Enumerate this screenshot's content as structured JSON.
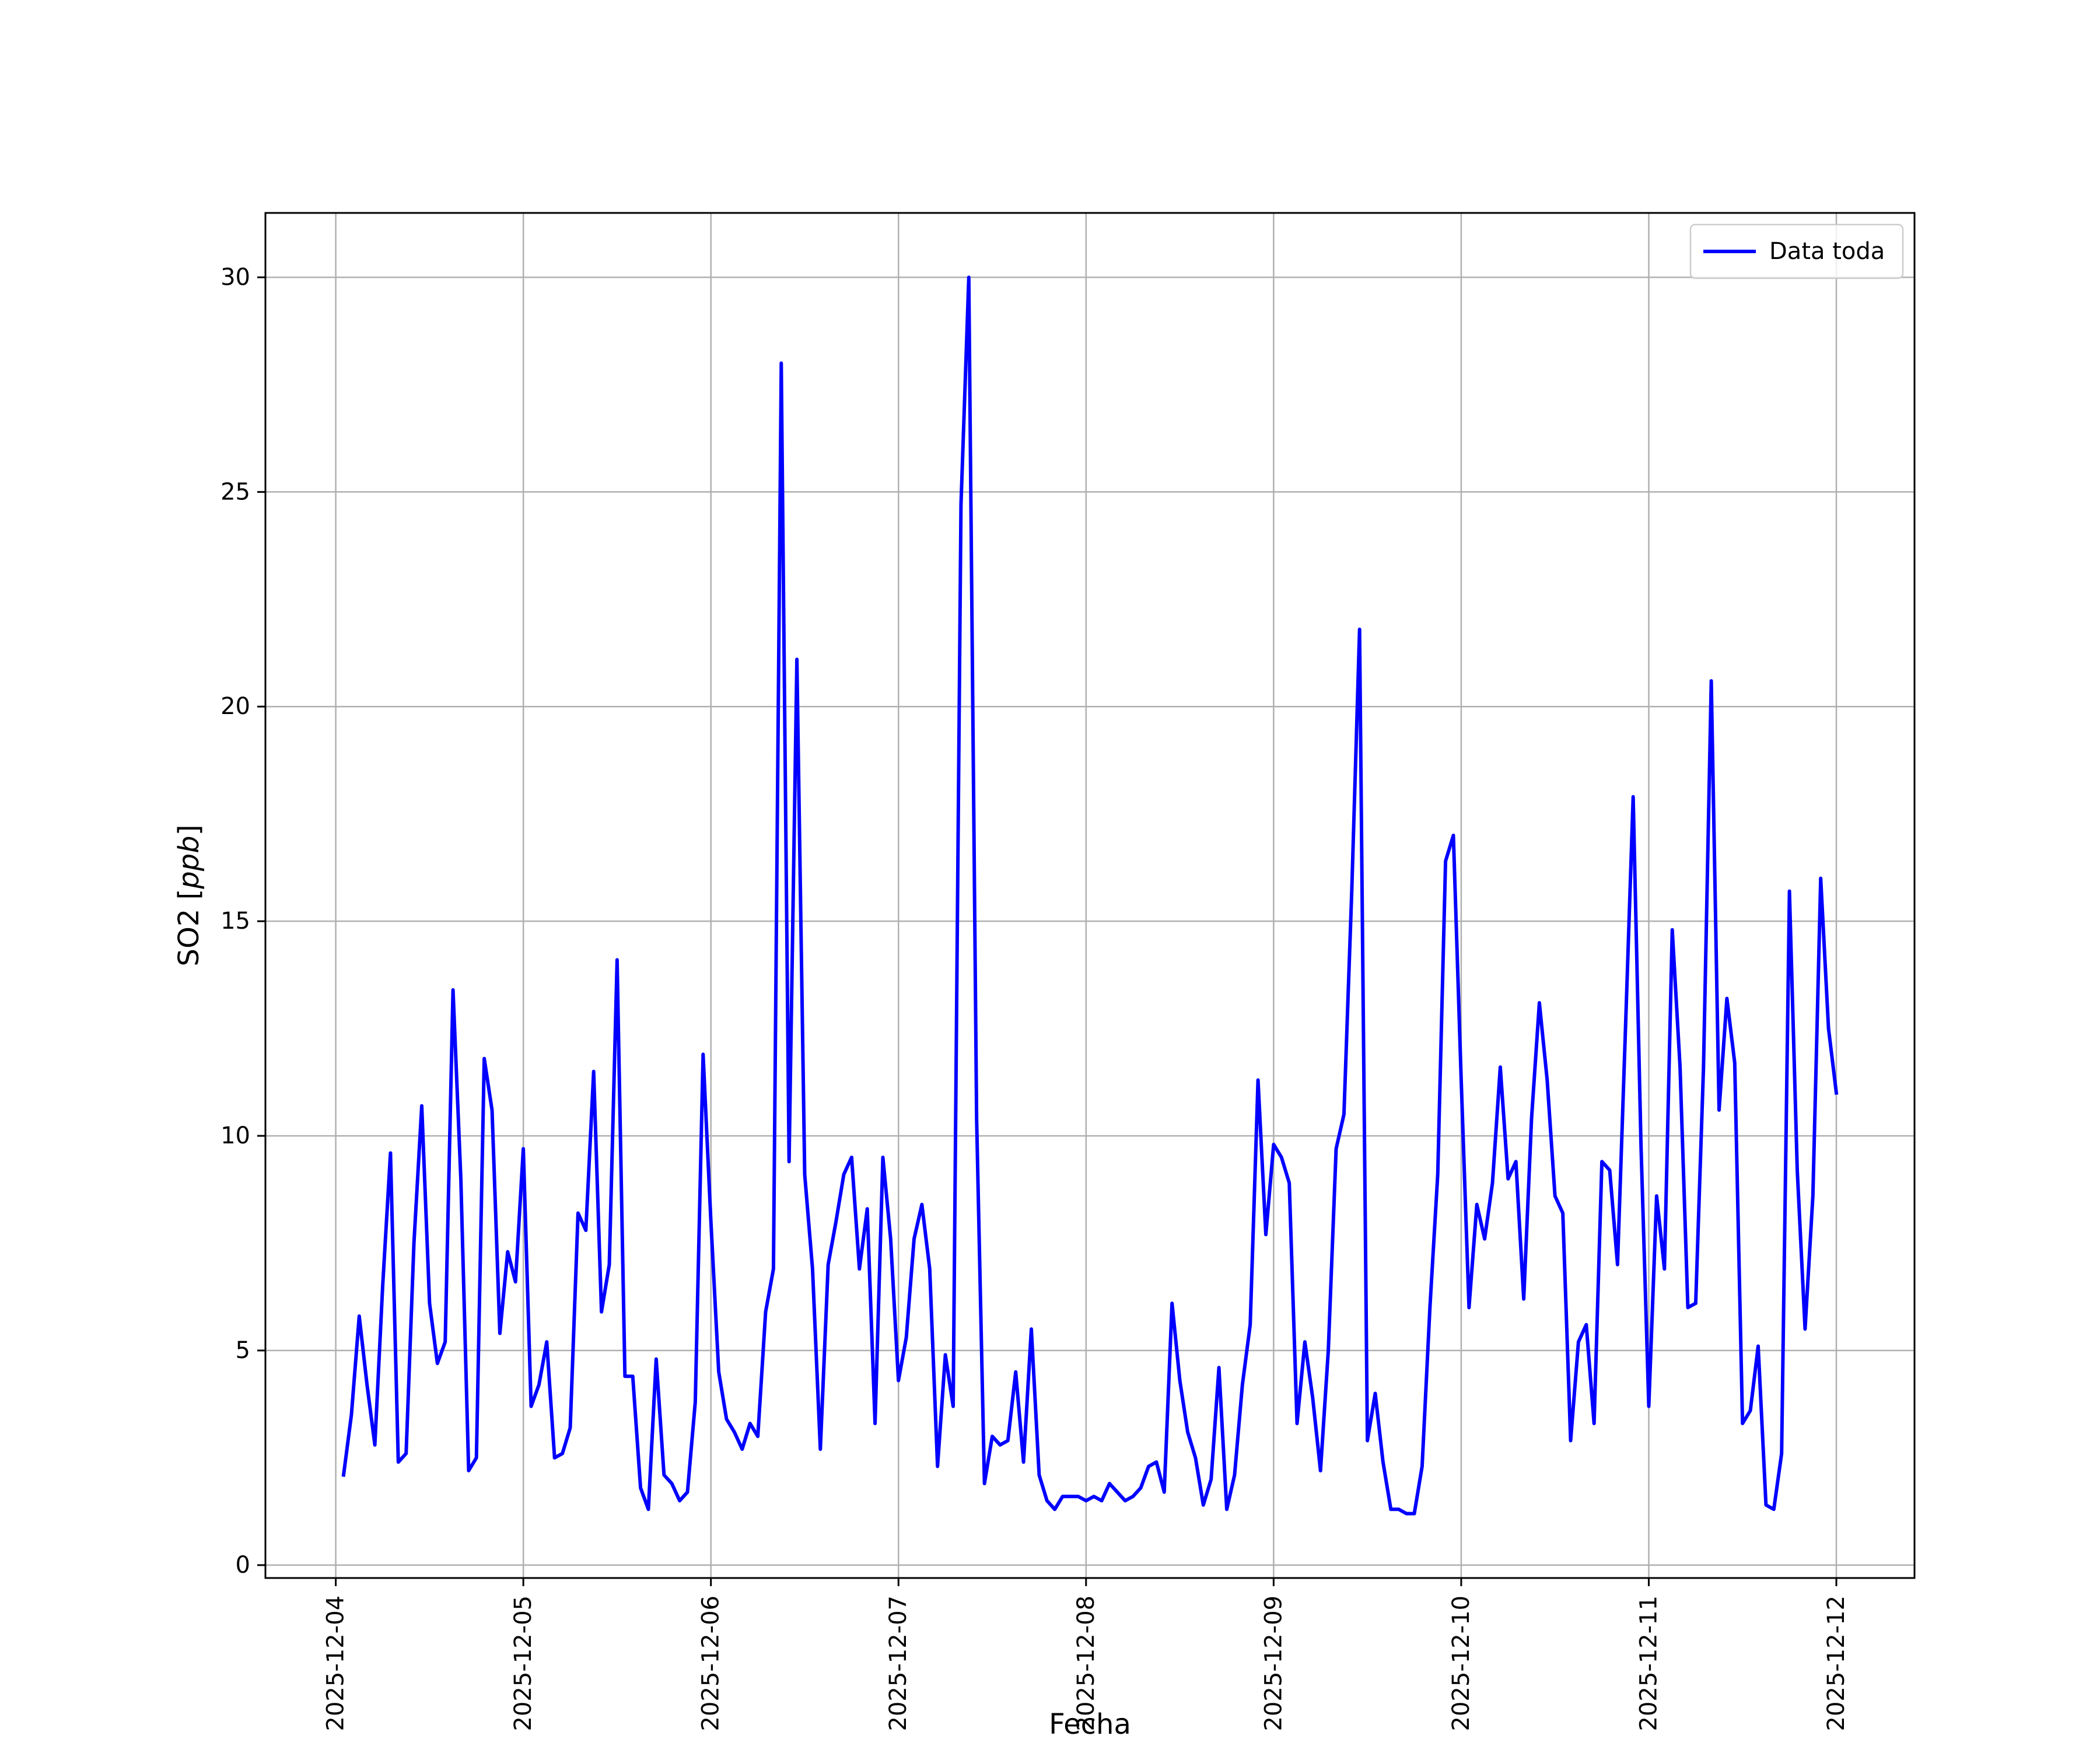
{
  "chart_data": {
    "type": "line",
    "title": "",
    "xlabel": "Fecha",
    "ylabel": "SO2 [ppb]",
    "ylabel_parts": {
      "plain": "SO2 [",
      "italic": "ppb",
      "close": "]"
    },
    "x_ticks": [
      "2025-12-04",
      "2025-12-05",
      "2025-12-06",
      "2025-12-07",
      "2025-12-08",
      "2025-12-09",
      "2025-12-10",
      "2025-12-11",
      "2025-12-12"
    ],
    "y_ticks": [
      0,
      5,
      10,
      15,
      20,
      25,
      30
    ],
    "xlim": [
      "2025-12-03T15:00",
      "2025-12-12T10:00"
    ],
    "ylim": [
      -0.3,
      31.5
    ],
    "grid": true,
    "legend_position": "upper right",
    "colors": {
      "series": "#0000ff",
      "grid": "#b0b0b0",
      "axes": "#000000"
    },
    "series": [
      {
        "name": "Data toda",
        "x": [
          "2025-12-04T01:00",
          "2025-12-04T02:00",
          "2025-12-04T03:00",
          "2025-12-04T04:00",
          "2025-12-04T05:00",
          "2025-12-04T06:00",
          "2025-12-04T07:00",
          "2025-12-04T08:00",
          "2025-12-04T09:00",
          "2025-12-04T10:00",
          "2025-12-04T11:00",
          "2025-12-04T12:00",
          "2025-12-04T13:00",
          "2025-12-04T14:00",
          "2025-12-04T15:00",
          "2025-12-04T16:00",
          "2025-12-04T17:00",
          "2025-12-04T18:00",
          "2025-12-04T19:00",
          "2025-12-04T20:00",
          "2025-12-04T21:00",
          "2025-12-04T22:00",
          "2025-12-04T23:00",
          "2025-12-05T00:00",
          "2025-12-05T01:00",
          "2025-12-05T02:00",
          "2025-12-05T03:00",
          "2025-12-05T04:00",
          "2025-12-05T05:00",
          "2025-12-05T06:00",
          "2025-12-05T07:00",
          "2025-12-05T08:00",
          "2025-12-05T09:00",
          "2025-12-05T10:00",
          "2025-12-05T11:00",
          "2025-12-05T12:00",
          "2025-12-05T13:00",
          "2025-12-05T14:00",
          "2025-12-05T15:00",
          "2025-12-05T16:00",
          "2025-12-05T17:00",
          "2025-12-05T18:00",
          "2025-12-05T19:00",
          "2025-12-05T20:00",
          "2025-12-05T21:00",
          "2025-12-05T22:00",
          "2025-12-05T23:00",
          "2025-12-06T00:00",
          "2025-12-06T01:00",
          "2025-12-06T02:00",
          "2025-12-06T03:00",
          "2025-12-06T04:00",
          "2025-12-06T05:00",
          "2025-12-06T06:00",
          "2025-12-06T07:00",
          "2025-12-06T08:00",
          "2025-12-06T09:00",
          "2025-12-06T10:00",
          "2025-12-06T11:00",
          "2025-12-06T12:00",
          "2025-12-06T13:00",
          "2025-12-06T14:00",
          "2025-12-06T15:00",
          "2025-12-06T16:00",
          "2025-12-06T17:00",
          "2025-12-06T18:00",
          "2025-12-06T19:00",
          "2025-12-06T20:00",
          "2025-12-06T21:00",
          "2025-12-06T22:00",
          "2025-12-06T23:00",
          "2025-12-07T00:00",
          "2025-12-07T01:00",
          "2025-12-07T02:00",
          "2025-12-07T03:00",
          "2025-12-07T04:00",
          "2025-12-07T05:00",
          "2025-12-07T06:00",
          "2025-12-07T07:00",
          "2025-12-07T08:00",
          "2025-12-07T09:00",
          "2025-12-07T10:00",
          "2025-12-07T11:00",
          "2025-12-07T12:00",
          "2025-12-07T13:00",
          "2025-12-07T14:00",
          "2025-12-07T15:00",
          "2025-12-07T16:00",
          "2025-12-07T17:00",
          "2025-12-07T18:00",
          "2025-12-07T19:00",
          "2025-12-07T20:00",
          "2025-12-07T21:00",
          "2025-12-07T22:00",
          "2025-12-07T23:00",
          "2025-12-08T00:00",
          "2025-12-08T01:00",
          "2025-12-08T02:00",
          "2025-12-08T03:00",
          "2025-12-08T04:00",
          "2025-12-08T05:00",
          "2025-12-08T06:00",
          "2025-12-08T07:00",
          "2025-12-08T08:00",
          "2025-12-08T09:00",
          "2025-12-08T10:00",
          "2025-12-08T11:00",
          "2025-12-08T12:00",
          "2025-12-08T13:00",
          "2025-12-08T14:00",
          "2025-12-08T15:00",
          "2025-12-08T16:00",
          "2025-12-08T17:00",
          "2025-12-08T18:00",
          "2025-12-08T19:00",
          "2025-12-08T20:00",
          "2025-12-08T21:00",
          "2025-12-08T22:00",
          "2025-12-08T23:00",
          "2025-12-09T00:00",
          "2025-12-09T01:00",
          "2025-12-09T02:00",
          "2025-12-09T03:00",
          "2025-12-09T04:00",
          "2025-12-09T05:00",
          "2025-12-09T06:00",
          "2025-12-09T07:00",
          "2025-12-09T08:00",
          "2025-12-09T09:00",
          "2025-12-09T10:00",
          "2025-12-09T11:00",
          "2025-12-09T12:00",
          "2025-12-09T13:00",
          "2025-12-09T14:00",
          "2025-12-09T15:00",
          "2025-12-09T16:00",
          "2025-12-09T17:00",
          "2025-12-09T18:00",
          "2025-12-09T19:00",
          "2025-12-09T20:00",
          "2025-12-09T21:00",
          "2025-12-09T22:00",
          "2025-12-09T23:00",
          "2025-12-10T00:00",
          "2025-12-10T01:00",
          "2025-12-10T02:00",
          "2025-12-10T03:00",
          "2025-12-10T04:00",
          "2025-12-10T05:00",
          "2025-12-10T06:00",
          "2025-12-10T07:00",
          "2025-12-10T08:00",
          "2025-12-10T09:00",
          "2025-12-10T10:00",
          "2025-12-10T11:00",
          "2025-12-10T12:00",
          "2025-12-10T13:00",
          "2025-12-10T14:00",
          "2025-12-10T15:00",
          "2025-12-10T16:00",
          "2025-12-10T17:00",
          "2025-12-10T18:00",
          "2025-12-10T19:00",
          "2025-12-10T20:00",
          "2025-12-10T21:00",
          "2025-12-10T22:00",
          "2025-12-10T23:00",
          "2025-12-11T00:00",
          "2025-12-11T01:00",
          "2025-12-11T02:00",
          "2025-12-11T03:00",
          "2025-12-11T04:00",
          "2025-12-11T05:00",
          "2025-12-11T06:00",
          "2025-12-11T07:00",
          "2025-12-11T08:00",
          "2025-12-11T09:00",
          "2025-12-11T10:00",
          "2025-12-11T11:00",
          "2025-12-11T12:00",
          "2025-12-11T13:00",
          "2025-12-11T14:00",
          "2025-12-11T15:00",
          "2025-12-11T16:00",
          "2025-12-11T17:00",
          "2025-12-11T18:00",
          "2025-12-11T19:00",
          "2025-12-11T20:00",
          "2025-12-11T21:00",
          "2025-12-11T22:00",
          "2025-12-11T23:00",
          "2025-12-12T00:00"
        ],
        "y": [
          2.1,
          3.5,
          5.8,
          4.2,
          2.8,
          6.5,
          9.6,
          2.4,
          2.6,
          7.5,
          10.7,
          6.1,
          4.7,
          5.2,
          13.4,
          9.0,
          2.2,
          2.5,
          11.8,
          10.6,
          5.4,
          7.3,
          6.6,
          9.7,
          3.7,
          4.2,
          5.2,
          2.5,
          2.6,
          3.2,
          8.2,
          7.8,
          11.5,
          5.9,
          7.0,
          14.1,
          4.4,
          4.4,
          1.8,
          1.3,
          4.8,
          2.1,
          1.9,
          1.5,
          1.7,
          3.8,
          11.9,
          8.0,
          4.5,
          3.4,
          3.1,
          2.7,
          3.3,
          3.0,
          5.9,
          6.9,
          28.0,
          9.4,
          21.1,
          9.1,
          6.9,
          2.7,
          7.0,
          8.0,
          9.1,
          9.5,
          6.9,
          8.3,
          3.3,
          9.5,
          7.6,
          4.3,
          5.3,
          7.6,
          8.4,
          6.9,
          2.3,
          4.9,
          3.7,
          24.7,
          30.0,
          10.4,
          1.9,
          3.0,
          2.8,
          2.9,
          4.5,
          2.4,
          5.5,
          2.1,
          1.5,
          1.3,
          1.6,
          1.6,
          1.6,
          1.5,
          1.6,
          1.5,
          1.9,
          1.7,
          1.5,
          1.6,
          1.8,
          2.3,
          2.4,
          1.7,
          6.1,
          4.3,
          3.1,
          2.5,
          1.4,
          2.0,
          4.6,
          1.3,
          2.1,
          4.2,
          5.6,
          11.3,
          7.7,
          9.8,
          9.5,
          8.9,
          3.3,
          5.2,
          3.9,
          2.2,
          5.0,
          9.7,
          10.5,
          15.7,
          21.8,
          2.9,
          4.0,
          2.4,
          1.3,
          1.3,
          1.2,
          1.2,
          2.3,
          6.0,
          9.1,
          16.4,
          17.0,
          11.3,
          6.0,
          8.4,
          7.6,
          8.9,
          11.6,
          9.0,
          9.4,
          6.2,
          10.4,
          13.1,
          11.3,
          8.6,
          8.2,
          2.9,
          5.2,
          5.6,
          3.3,
          9.4,
          9.2,
          7.0,
          12.4,
          17.9,
          9.8,
          3.7,
          8.6,
          6.9,
          14.8,
          11.6,
          6.0,
          6.1,
          11.6,
          20.6,
          10.6,
          13.2,
          11.7,
          3.3,
          3.6,
          5.1,
          1.4,
          1.3,
          2.6,
          15.7,
          9.2,
          5.5,
          8.6,
          16.0,
          12.5,
          11.0
        ]
      }
    ]
  }
}
